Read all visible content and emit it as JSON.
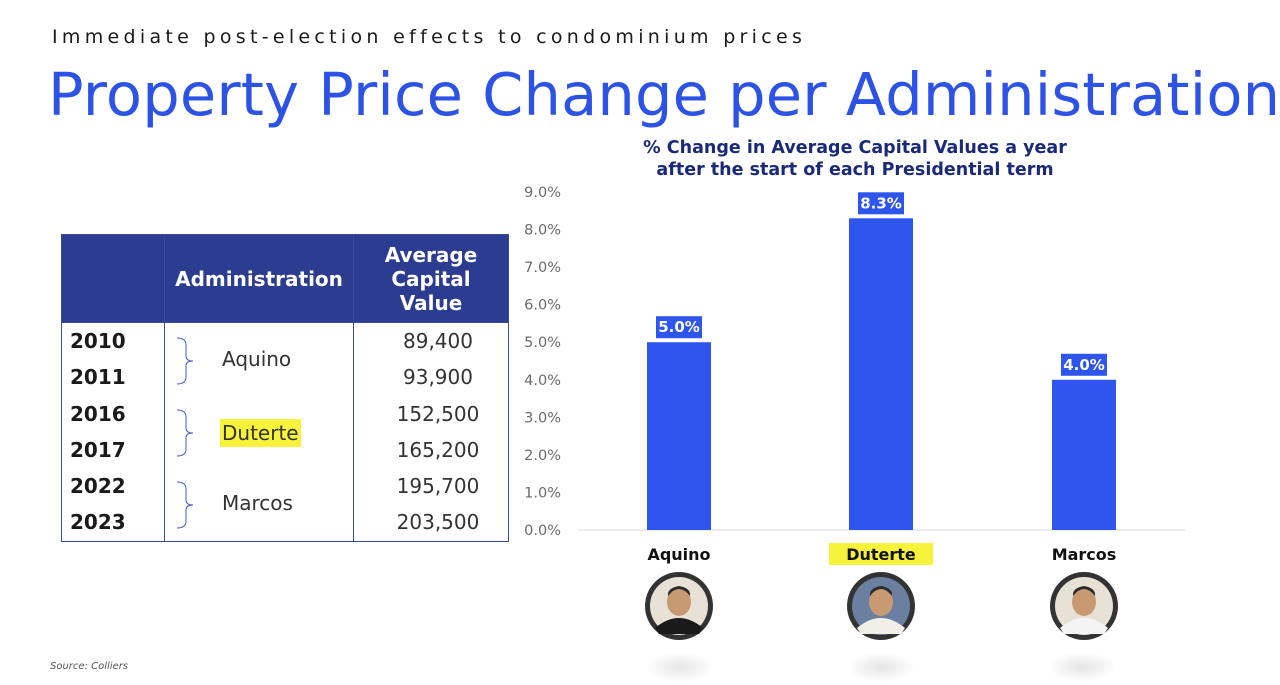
{
  "header": {
    "eyebrow": "Immediate post-election effects to condominium prices",
    "title": "Property Price Change per Administration"
  },
  "table": {
    "headers": [
      "",
      "Administration",
      "Average Capital Value"
    ],
    "header_lines": [
      "Average",
      "Capital",
      "Value"
    ],
    "years": [
      "2010",
      "2011",
      "2016",
      "2017",
      "2022",
      "2023"
    ],
    "values": [
      "89,400",
      "93,900",
      "152,500",
      "165,200",
      "195,700",
      "203,500"
    ],
    "administrations": [
      "Aquino",
      "Duterte",
      "Marcos"
    ],
    "highlighted_admin": "Duterte"
  },
  "chart_data": {
    "type": "bar",
    "title": "% Change in Average Capital Values a year after the start of each Presidential term",
    "title_lines": [
      "% Change in Average Capital Values a year",
      "after the start of each Presidential term"
    ],
    "categories": [
      "Aquino",
      "Duterte",
      "Marcos"
    ],
    "values": [
      5.0,
      8.3,
      4.0
    ],
    "value_labels": [
      "5.0%",
      "8.3%",
      "4.0%"
    ],
    "y_ticks": [
      "0.0%",
      "1.0%",
      "2.0%",
      "3.0%",
      "4.0%",
      "5.0%",
      "6.0%",
      "7.0%",
      "8.0%",
      "9.0%"
    ],
    "ylim": [
      0,
      9
    ],
    "xlabel": "",
    "ylabel": "",
    "grid": false,
    "bar_color": "#2e55ee",
    "highlight_category": "Duterte",
    "highlight_color": "#f7f23a"
  },
  "footer": {
    "source": "Source: Colliers"
  }
}
